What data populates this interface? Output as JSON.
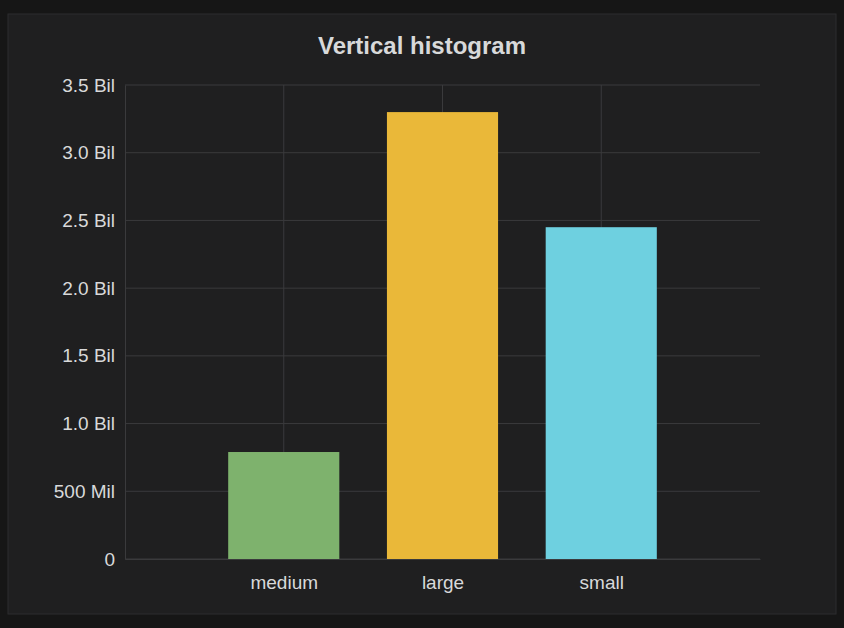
{
  "chart_data": {
    "type": "bar",
    "title": "Vertical histogram",
    "categories": [
      "medium",
      "large",
      "small"
    ],
    "values": [
      790000000,
      3300000000,
      2450000000
    ],
    "colors": [
      "#7eb26d",
      "#eab839",
      "#6ed0e0"
    ],
    "ylim": [
      0,
      3500000000
    ],
    "yticks": [
      0,
      {
        "value": 500000000,
        "label": "500 Mil"
      },
      {
        "value": 1000000000,
        "label": "1.0 Bil"
      },
      {
        "value": 1500000000,
        "label": "1.5 Bil"
      },
      {
        "value": 2000000000,
        "label": "2.0 Bil"
      },
      {
        "value": 2500000000,
        "label": "2.5 Bil"
      },
      {
        "value": 3000000000,
        "label": "3.0 Bil"
      },
      {
        "value": 3500000000,
        "label": "3.5 Bil"
      }
    ],
    "grid": true
  }
}
